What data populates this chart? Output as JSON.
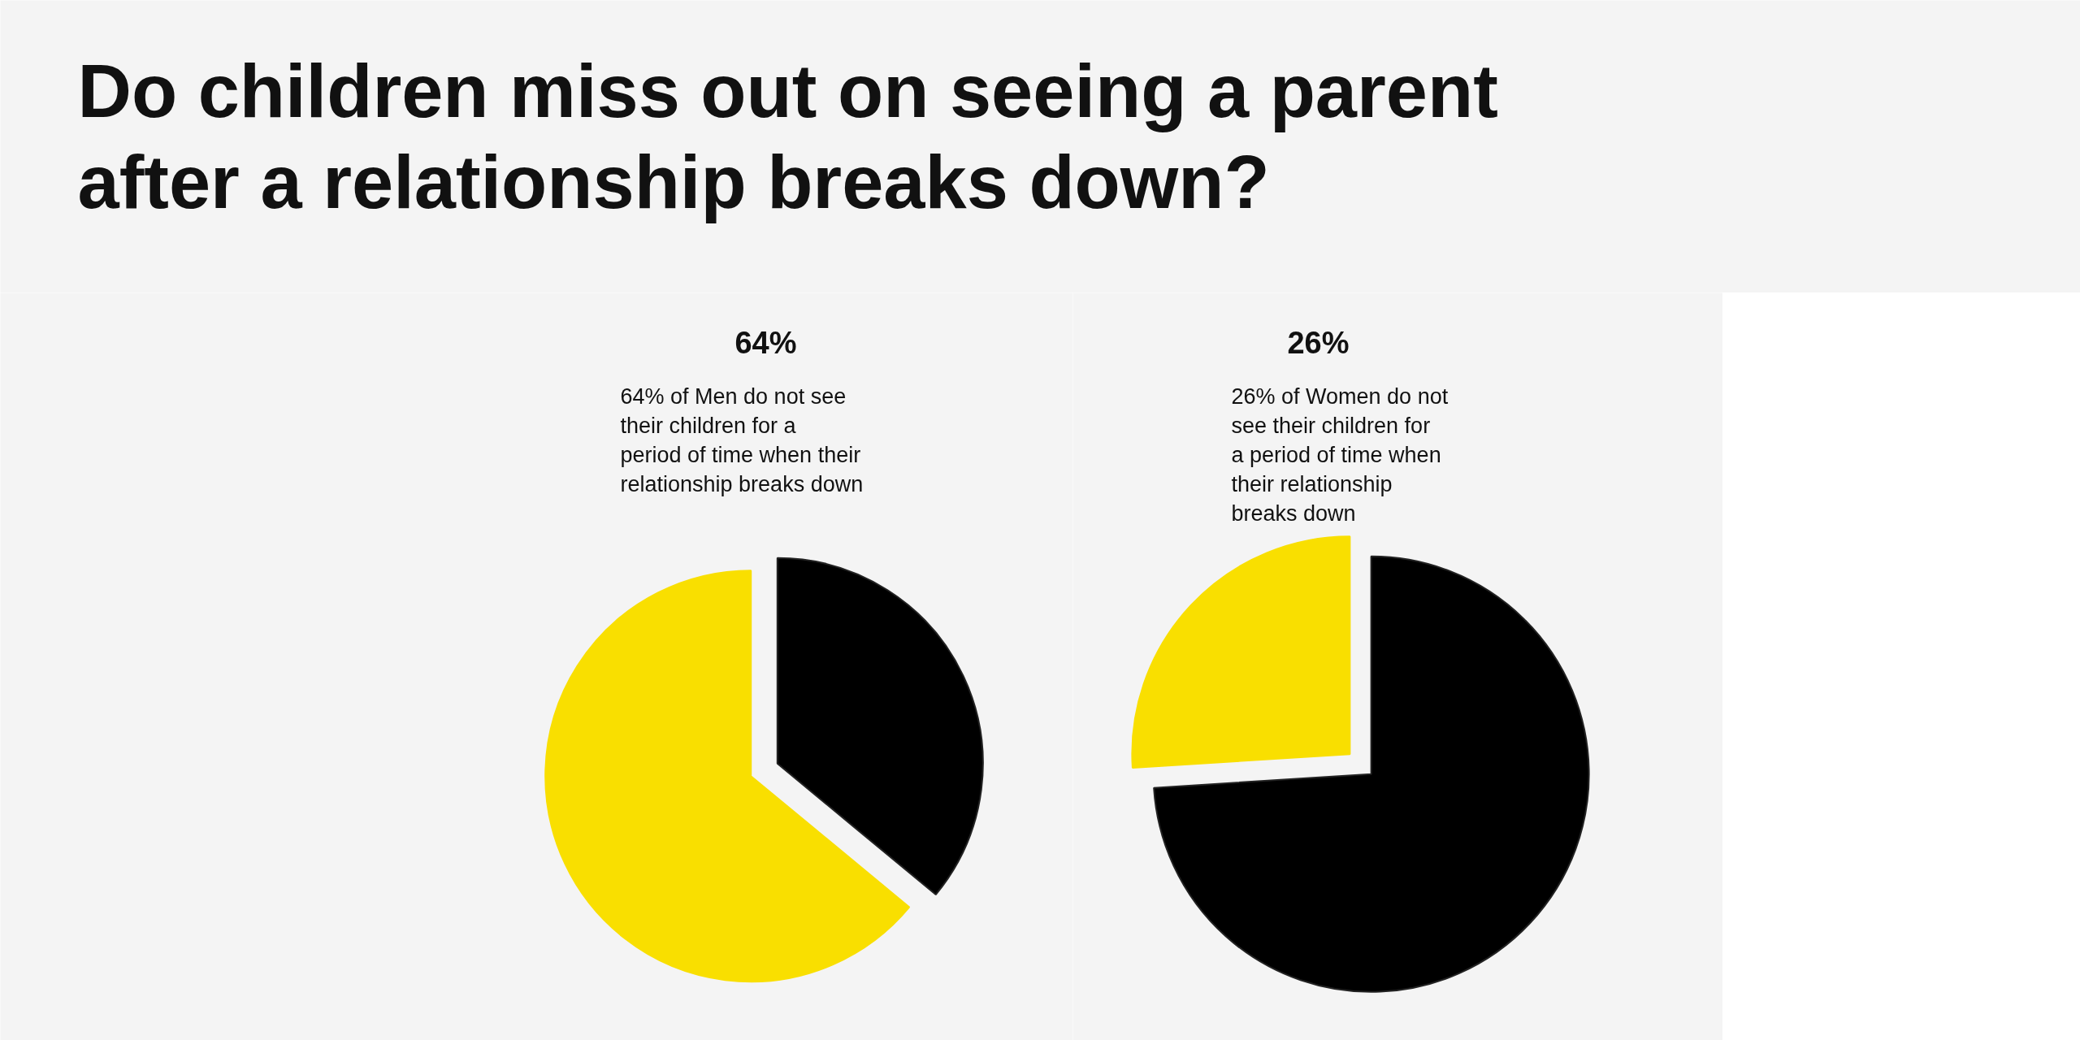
{
  "chart_data": [
    {
      "type": "pie",
      "title": "Do children miss out on seeing a parent after a relationship breaks down?",
      "subtitle": "64%",
      "annotations": [
        "64% of Men do not see their children for a period of time when their relationship breaks down"
      ],
      "categories": [
        null,
        null
      ],
      "values": [
        64,
        36
      ],
      "colors": [
        "#f9df00",
        "#000000"
      ]
    },
    {
      "type": "pie",
      "subtitle": "26%",
      "annotations": [
        "26% of Women do not see their children for a period of time when their relationship breaks down"
      ],
      "categories": [
        null,
        null
      ],
      "values": [
        26,
        74
      ],
      "colors": [
        "#f9df00",
        "#000000"
      ]
    }
  ]
}
